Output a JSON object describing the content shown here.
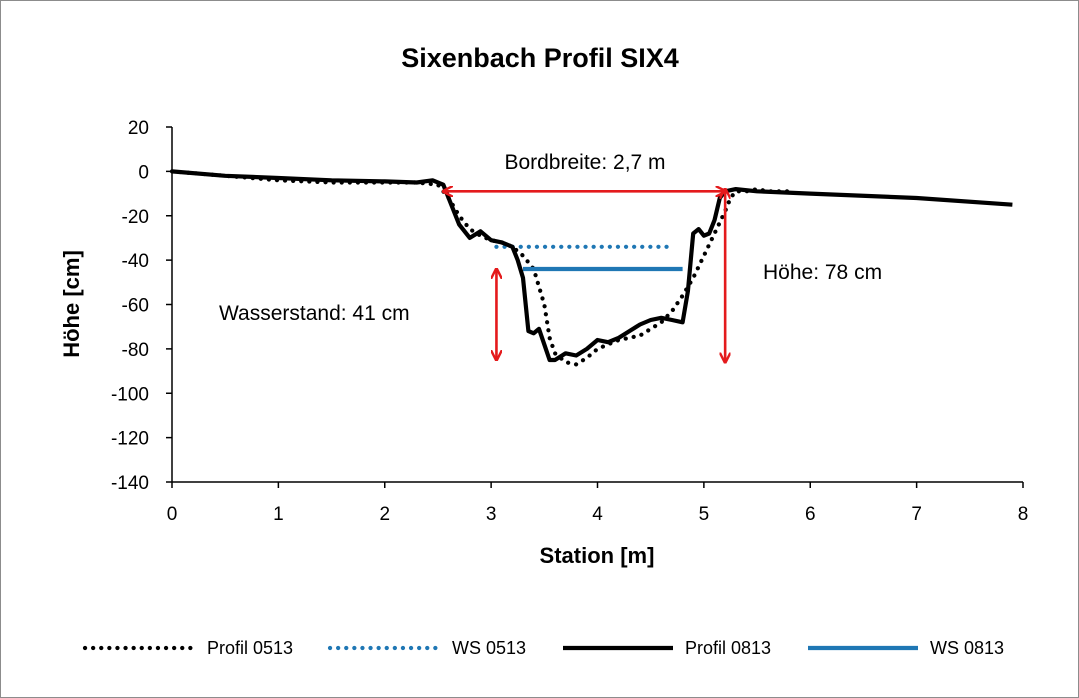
{
  "chart_data": {
    "type": "line",
    "title": "Sixenbach Profil SIX4",
    "xlabel": "Station [m]",
    "ylabel": "Höhe [cm]",
    "xlim": [
      0,
      8
    ],
    "ylim": [
      -140,
      20
    ],
    "xticks": [
      0,
      1,
      2,
      3,
      4,
      5,
      6,
      7,
      8
    ],
    "yticks": [
      20,
      0,
      -20,
      -40,
      -60,
      -80,
      -100,
      -120,
      -140
    ],
    "grid": false,
    "legend_position": "bottom",
    "series": [
      {
        "name": "Profil 0513",
        "style": "dotted",
        "color": "#000000",
        "points": [
          [
            0,
            0
          ],
          [
            0.5,
            -2
          ],
          [
            1,
            -4
          ],
          [
            1.5,
            -5
          ],
          [
            2,
            -5
          ],
          [
            2.3,
            -5
          ],
          [
            2.5,
            -6
          ],
          [
            2.6,
            -12
          ],
          [
            2.7,
            -20
          ],
          [
            2.8,
            -26
          ],
          [
            2.9,
            -29
          ],
          [
            3,
            -31
          ],
          [
            3.1,
            -32
          ],
          [
            3.2,
            -34
          ],
          [
            3.3,
            -38
          ],
          [
            3.4,
            -44
          ],
          [
            3.5,
            -60
          ],
          [
            3.55,
            -75
          ],
          [
            3.6,
            -82
          ],
          [
            3.7,
            -86
          ],
          [
            3.8,
            -87
          ],
          [
            3.9,
            -84
          ],
          [
            4.0,
            -80
          ],
          [
            4.1,
            -78
          ],
          [
            4.2,
            -76
          ],
          [
            4.3,
            -75
          ],
          [
            4.4,
            -74
          ],
          [
            4.5,
            -71
          ],
          [
            4.6,
            -68
          ],
          [
            4.7,
            -63
          ],
          [
            4.8,
            -56
          ],
          [
            4.9,
            -48
          ],
          [
            5.0,
            -38
          ],
          [
            5.1,
            -28
          ],
          [
            5.2,
            -18
          ],
          [
            5.25,
            -12
          ],
          [
            5.3,
            -9
          ],
          [
            5.4,
            -9
          ],
          [
            5.5,
            -8
          ],
          [
            5.6,
            -9
          ],
          [
            5.8,
            -9
          ]
        ]
      },
      {
        "name": "WS 0513",
        "style": "dotted",
        "color": "#1f77b4",
        "points": [
          [
            3.05,
            -34
          ],
          [
            4.65,
            -34
          ]
        ]
      },
      {
        "name": "Profil 0813",
        "style": "solid",
        "color": "#000000",
        "points": [
          [
            0,
            0
          ],
          [
            0.5,
            -2
          ],
          [
            1,
            -3
          ],
          [
            1.5,
            -4
          ],
          [
            2,
            -4.5
          ],
          [
            2.3,
            -5
          ],
          [
            2.45,
            -4
          ],
          [
            2.55,
            -6
          ],
          [
            2.6,
            -12
          ],
          [
            2.7,
            -24
          ],
          [
            2.8,
            -30
          ],
          [
            2.9,
            -27
          ],
          [
            3,
            -31
          ],
          [
            3.1,
            -32
          ],
          [
            3.2,
            -34
          ],
          [
            3.25,
            -40
          ],
          [
            3.3,
            -48
          ],
          [
            3.35,
            -72
          ],
          [
            3.4,
            -73
          ],
          [
            3.45,
            -71
          ],
          [
            3.5,
            -78
          ],
          [
            3.55,
            -85
          ],
          [
            3.6,
            -85
          ],
          [
            3.7,
            -82
          ],
          [
            3.8,
            -83
          ],
          [
            3.9,
            -80
          ],
          [
            4.0,
            -76
          ],
          [
            4.1,
            -77
          ],
          [
            4.2,
            -75
          ],
          [
            4.3,
            -72
          ],
          [
            4.4,
            -69
          ],
          [
            4.5,
            -67
          ],
          [
            4.6,
            -66
          ],
          [
            4.7,
            -67
          ],
          [
            4.8,
            -68
          ],
          [
            4.85,
            -54
          ],
          [
            4.9,
            -28
          ],
          [
            4.95,
            -26
          ],
          [
            5.0,
            -29
          ],
          [
            5.05,
            -28
          ],
          [
            5.1,
            -22
          ],
          [
            5.15,
            -12
          ],
          [
            5.2,
            -9
          ],
          [
            5.3,
            -8
          ],
          [
            5.5,
            -9
          ],
          [
            6,
            -10
          ],
          [
            7,
            -12
          ],
          [
            7.9,
            -15
          ]
        ]
      },
      {
        "name": "WS 0813",
        "style": "solid",
        "color": "#1f77b4",
        "points": [
          [
            3.3,
            -44
          ],
          [
            4.8,
            -44
          ]
        ]
      }
    ],
    "annotations": [
      {
        "text": "Bordbreite: 2,7 m",
        "type": "double-arrow",
        "from": [
          2.55,
          -9
        ],
        "to": [
          5.2,
          -9
        ]
      },
      {
        "text": "Wasserstand: 41 cm",
        "type": "double-arrow",
        "from": [
          3.05,
          -44
        ],
        "to": [
          3.05,
          -85
        ]
      },
      {
        "text": "Höhe: 78 cm",
        "type": "double-arrow",
        "from": [
          5.2,
          -8
        ],
        "to": [
          5.2,
          -86
        ]
      }
    ]
  },
  "colors": {
    "arrow": "#e41a1c",
    "water": "#1f77b4",
    "profile": "#000000",
    "frame": "#8c8c8c"
  }
}
